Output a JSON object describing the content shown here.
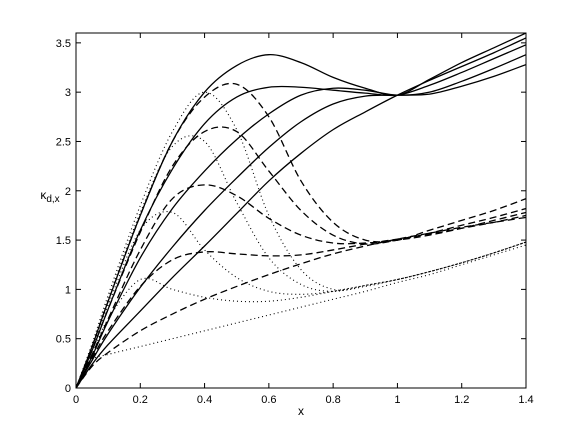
{
  "chart_data": {
    "type": "line",
    "title": "",
    "xlabel": "x",
    "ylabel": "κ",
    "ylabel_sub": "d,x",
    "xlim": [
      0,
      1.4
    ],
    "ylim": [
      0,
      3.6
    ],
    "xticks": [
      0,
      0.2,
      0.4,
      0.6,
      0.8,
      1,
      1.2,
      1.4
    ],
    "xtick_labels": [
      "0",
      "0.2",
      "0.4",
      "0.6",
      "0.8",
      "1",
      "1.2",
      "1.4"
    ],
    "yticks": [
      0,
      0.5,
      1,
      1.5,
      2,
      2.5,
      3,
      3.5
    ],
    "ytick_labels": [
      "0",
      "0.5",
      "1",
      "1.5",
      "2",
      "2.5",
      "3",
      "3.5"
    ],
    "grid": false,
    "legend": "none",
    "line_color": "#000000",
    "series": [
      {
        "style": "solid",
        "x": [
          0,
          0.05,
          0.1,
          0.2,
          0.3,
          0.4,
          0.5,
          0.6,
          0.7,
          0.8,
          0.9,
          1.0,
          1.1,
          1.2,
          1.3,
          1.4
        ],
        "y": [
          0,
          0.24,
          0.44,
          0.78,
          1.12,
          1.44,
          1.77,
          2.1,
          2.38,
          2.62,
          2.8,
          2.97,
          3.12,
          3.26,
          3.4,
          3.55
        ]
      },
      {
        "style": "solid",
        "x": [
          0,
          0.05,
          0.1,
          0.2,
          0.3,
          0.4,
          0.5,
          0.6,
          0.7,
          0.8,
          0.9,
          1.0,
          1.1,
          1.2,
          1.3,
          1.4
        ],
        "y": [
          0,
          0.28,
          0.55,
          1.02,
          1.43,
          1.8,
          2.13,
          2.44,
          2.7,
          2.88,
          2.96,
          2.97,
          2.98,
          3.06,
          3.16,
          3.28
        ]
      },
      {
        "style": "solid",
        "x": [
          0,
          0.05,
          0.1,
          0.2,
          0.3,
          0.4,
          0.5,
          0.6,
          0.7,
          0.8,
          0.9,
          1.0,
          1.1,
          1.2,
          1.3,
          1.4
        ],
        "y": [
          0,
          0.32,
          0.68,
          1.32,
          1.82,
          2.2,
          2.52,
          2.78,
          2.97,
          3.04,
          3.02,
          2.97,
          3.0,
          3.11,
          3.24,
          3.38
        ]
      },
      {
        "style": "solid",
        "x": [
          0,
          0.05,
          0.1,
          0.2,
          0.3,
          0.4,
          0.5,
          0.6,
          0.7,
          0.8,
          0.9,
          1.0,
          1.1,
          1.2,
          1.3,
          1.4
        ],
        "y": [
          0,
          0.38,
          0.8,
          1.6,
          2.22,
          2.68,
          2.95,
          3.05,
          3.05,
          3.02,
          2.99,
          2.97,
          3.07,
          3.2,
          3.34,
          3.48
        ]
      },
      {
        "style": "solid",
        "x": [
          0,
          0.05,
          0.1,
          0.2,
          0.3,
          0.4,
          0.5,
          0.6,
          0.7,
          0.8,
          0.9,
          1.0,
          1.1,
          1.2,
          1.3,
          1.4
        ],
        "y": [
          0,
          0.42,
          0.88,
          1.75,
          2.5,
          3.0,
          3.27,
          3.38,
          3.3,
          3.15,
          3.04,
          2.97,
          3.13,
          3.3,
          3.45,
          3.6
        ]
      },
      {
        "style": "dashed",
        "x": [
          0,
          0.05,
          0.1,
          0.2,
          0.3,
          0.4,
          0.5,
          0.6,
          0.7,
          0.8,
          0.9,
          1.0,
          1.1,
          1.2,
          1.3,
          1.4
        ],
        "y": [
          0,
          0.22,
          0.36,
          0.58,
          0.75,
          0.9,
          1.03,
          1.15,
          1.26,
          1.36,
          1.44,
          1.51,
          1.57,
          1.63,
          1.68,
          1.73
        ]
      },
      {
        "style": "dashed",
        "x": [
          0,
          0.05,
          0.1,
          0.2,
          0.3,
          0.4,
          0.5,
          0.6,
          0.7,
          0.8,
          0.9,
          1.0,
          1.1,
          1.2,
          1.3,
          1.4
        ],
        "y": [
          0,
          0.3,
          0.58,
          1.03,
          1.3,
          1.38,
          1.36,
          1.34,
          1.35,
          1.4,
          1.46,
          1.51,
          1.56,
          1.62,
          1.68,
          1.75
        ]
      },
      {
        "style": "dashed",
        "x": [
          0,
          0.05,
          0.1,
          0.2,
          0.3,
          0.4,
          0.5,
          0.6,
          0.7,
          0.8,
          0.9,
          1.0,
          1.1,
          1.2,
          1.3,
          1.4
        ],
        "y": [
          0,
          0.34,
          0.7,
          1.4,
          1.92,
          2.06,
          1.95,
          1.72,
          1.55,
          1.47,
          1.47,
          1.5,
          1.55,
          1.62,
          1.7,
          1.78
        ]
      },
      {
        "style": "dashed",
        "x": [
          0,
          0.05,
          0.1,
          0.2,
          0.3,
          0.4,
          0.5,
          0.6,
          0.7,
          0.8,
          0.9,
          1.0,
          1.1,
          1.2,
          1.3,
          1.4
        ],
        "y": [
          0,
          0.38,
          0.8,
          1.58,
          2.25,
          2.6,
          2.6,
          2.2,
          1.8,
          1.55,
          1.46,
          1.5,
          1.57,
          1.65,
          1.73,
          1.82
        ]
      },
      {
        "style": "dashed",
        "x": [
          0,
          0.05,
          0.1,
          0.2,
          0.3,
          0.4,
          0.5,
          0.6,
          0.7,
          0.8,
          0.9,
          1.0,
          1.1,
          1.2,
          1.3,
          1.4
        ],
        "y": [
          0,
          0.42,
          0.88,
          1.75,
          2.5,
          2.95,
          3.08,
          2.75,
          2.1,
          1.68,
          1.5,
          1.5,
          1.6,
          1.7,
          1.8,
          1.92
        ]
      },
      {
        "style": "dotted",
        "x": [
          0,
          0.05,
          0.1,
          0.2,
          0.3,
          0.4,
          0.5,
          0.6,
          0.7,
          0.8,
          0.9,
          1.0,
          1.1,
          1.2,
          1.3,
          1.4
        ],
        "y": [
          0,
          0.28,
          0.34,
          0.42,
          0.5,
          0.58,
          0.66,
          0.74,
          0.82,
          0.9,
          0.98,
          1.07,
          1.15,
          1.25,
          1.35,
          1.45
        ]
      },
      {
        "style": "dotted",
        "x": [
          0,
          0.05,
          0.1,
          0.2,
          0.3,
          0.4,
          0.5,
          0.6,
          0.7,
          0.8,
          0.9,
          1.0,
          1.1,
          1.2,
          1.3,
          1.4
        ],
        "y": [
          0,
          0.34,
          0.7,
          1.1,
          1.0,
          0.92,
          0.88,
          0.88,
          0.92,
          0.98,
          1.04,
          1.1,
          1.18,
          1.27,
          1.37,
          1.48
        ]
      },
      {
        "style": "dotted",
        "x": [
          0,
          0.05,
          0.1,
          0.2,
          0.3,
          0.4,
          0.5,
          0.6,
          0.7,
          0.8,
          0.9,
          1.0,
          1.1,
          1.2,
          1.3,
          1.4
        ],
        "y": [
          0,
          0.4,
          0.84,
          1.6,
          1.78,
          1.4,
          1.12,
          0.98,
          0.95,
          0.98,
          1.04,
          1.1,
          1.18,
          1.27,
          1.37,
          1.48
        ]
      },
      {
        "style": "dotted",
        "x": [
          0,
          0.05,
          0.1,
          0.2,
          0.3,
          0.4,
          0.5,
          0.6,
          0.7,
          0.8,
          0.9,
          1.0,
          1.1,
          1.2,
          1.3,
          1.4
        ],
        "y": [
          0,
          0.43,
          0.9,
          1.78,
          2.45,
          2.5,
          1.88,
          1.32,
          1.05,
          0.98,
          1.04,
          1.1,
          1.18,
          1.27,
          1.37,
          1.48
        ]
      },
      {
        "style": "dotted",
        "x": [
          0,
          0.05,
          0.1,
          0.2,
          0.3,
          0.4,
          0.5,
          0.6,
          0.7,
          0.8,
          0.9,
          1.0,
          1.1,
          1.2,
          1.3,
          1.4
        ],
        "y": [
          0,
          0.45,
          0.94,
          1.85,
          2.6,
          3.0,
          2.62,
          1.75,
          1.2,
          1.0,
          1.03,
          1.1,
          1.18,
          1.27,
          1.37,
          1.48
        ]
      }
    ]
  }
}
